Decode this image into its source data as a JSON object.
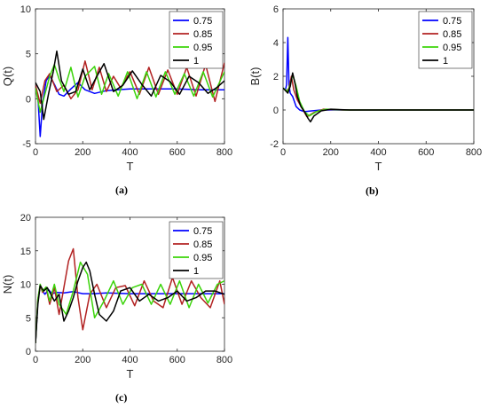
{
  "chart_data": [
    {
      "type": "line",
      "panel": "(a)",
      "xlabel": "T",
      "ylabel": "Q(t)",
      "xlim": [
        0,
        800
      ],
      "ylim": [
        -5,
        10
      ],
      "xticks": [
        0,
        200,
        400,
        600,
        800
      ],
      "yticks": [
        -5,
        0,
        5,
        10
      ],
      "legend": "top-right",
      "series": [
        {
          "name": "0.75",
          "color": "#0000ff",
          "x": [
            0,
            10,
            20,
            30,
            45,
            60,
            80,
            100,
            120,
            150,
            180,
            210,
            250,
            300,
            400,
            500,
            600,
            700,
            800
          ],
          "y": [
            1.5,
            0.2,
            -4.2,
            -0.5,
            2.0,
            2.6,
            1.6,
            0.5,
            0.3,
            1.1,
            1.8,
            1.0,
            0.6,
            0.9,
            1.1,
            1.1,
            1.1,
            1.0,
            1.0
          ]
        },
        {
          "name": "0.85",
          "color": "#b22222",
          "x": [
            0,
            20,
            40,
            60,
            90,
            120,
            150,
            180,
            210,
            240,
            270,
            300,
            330,
            360,
            400,
            440,
            480,
            520,
            560,
            600,
            640,
            680,
            720,
            760,
            800
          ],
          "y": [
            1.5,
            -0.5,
            2.0,
            2.8,
            0.8,
            1.5,
            0.0,
            1.0,
            4.2,
            1.0,
            3.5,
            0.8,
            2.5,
            1.2,
            3.0,
            0.5,
            3.5,
            0.5,
            3.2,
            0.5,
            3.5,
            0.3,
            3.8,
            -0.3,
            4.0
          ]
        },
        {
          "name": "0.95",
          "color": "#3bd40a",
          "x": [
            0,
            20,
            40,
            60,
            80,
            100,
            120,
            150,
            180,
            210,
            250,
            280,
            310,
            350,
            390,
            430,
            470,
            510,
            550,
            590,
            630,
            670,
            710,
            750,
            800
          ],
          "y": [
            1.2,
            -1.5,
            0.5,
            2.5,
            3.8,
            2.2,
            0.8,
            3.5,
            0.2,
            2.5,
            3.6,
            0.5,
            2.8,
            0.3,
            3.0,
            0.0,
            3.0,
            0.2,
            3.0,
            0.5,
            2.8,
            0.3,
            3.0,
            0.2,
            3.0
          ]
        },
        {
          "name": "1",
          "color": "#000000",
          "x": [
            0,
            20,
            35,
            55,
            75,
            90,
            110,
            140,
            170,
            200,
            230,
            260,
            290,
            330,
            370,
            410,
            450,
            490,
            530,
            570,
            610,
            650,
            690,
            730,
            770,
            800
          ],
          "y": [
            1.8,
            0.8,
            -2.3,
            0.5,
            3.0,
            5.3,
            2.0,
            0.5,
            0.8,
            3.3,
            1.0,
            2.5,
            3.9,
            0.8,
            1.5,
            3.1,
            1.6,
            0.3,
            2.6,
            1.9,
            0.5,
            2.5,
            1.8,
            0.6,
            1.3,
            2.0
          ]
        }
      ]
    },
    {
      "type": "line",
      "panel": "(b)",
      "xlabel": "T",
      "ylabel": "B(t)",
      "xlim": [
        0,
        800
      ],
      "ylim": [
        -2,
        6
      ],
      "xticks": [
        0,
        200,
        400,
        600,
        800
      ],
      "yticks": [
        -2,
        0,
        2,
        4,
        6
      ],
      "legend": "top-right",
      "series": [
        {
          "name": "0.75",
          "color": "#0000ff",
          "x": [
            0,
            10,
            15,
            20,
            25,
            30,
            40,
            55,
            70,
            90,
            120,
            160,
            250,
            400,
            800
          ],
          "y": [
            1.3,
            1.2,
            1.5,
            4.3,
            1.5,
            1.0,
            0.8,
            0.2,
            0.0,
            -0.1,
            -0.05,
            0.0,
            0.0,
            0.0,
            0.0
          ]
        },
        {
          "name": "0.85",
          "color": "#b22222",
          "x": [
            0,
            15,
            25,
            35,
            45,
            60,
            80,
            100,
            130,
            170,
            250,
            800
          ],
          "y": [
            1.3,
            1.1,
            1.3,
            2.0,
            1.2,
            0.6,
            0.1,
            -0.4,
            -0.15,
            0.05,
            0.0,
            0.0
          ]
        },
        {
          "name": "0.95",
          "color": "#3bd40a",
          "x": [
            0,
            20,
            30,
            40,
            55,
            70,
            90,
            110,
            140,
            180,
            260,
            800
          ],
          "y": [
            1.3,
            1.1,
            1.5,
            2.1,
            1.4,
            0.5,
            -0.1,
            -0.35,
            -0.1,
            0.05,
            0.0,
            0.0
          ]
        },
        {
          "name": "1",
          "color": "#000000",
          "x": [
            0,
            20,
            30,
            40,
            50,
            60,
            75,
            90,
            105,
            115,
            130,
            160,
            200,
            280,
            800
          ],
          "y": [
            1.3,
            1.0,
            1.4,
            2.2,
            1.6,
            0.8,
            0.2,
            -0.1,
            -0.5,
            -0.7,
            -0.35,
            -0.05,
            0.05,
            0.0,
            0.0
          ]
        }
      ]
    },
    {
      "type": "line",
      "panel": "(c)",
      "xlabel": "T",
      "ylabel": "N(t)",
      "xlim": [
        0,
        800
      ],
      "ylim": [
        0,
        20
      ],
      "xticks": [
        0,
        200,
        400,
        600,
        800
      ],
      "yticks": [
        0,
        5,
        10,
        15,
        20
      ],
      "legend": "top-right",
      "series": [
        {
          "name": "0.75",
          "color": "#0000ff",
          "x": [
            0,
            10,
            20,
            30,
            40,
            55,
            70,
            90,
            120,
            160,
            200,
            250,
            300,
            400,
            500,
            600,
            700,
            800
          ],
          "y": [
            1.2,
            7.5,
            9.8,
            9.0,
            8.5,
            9.2,
            8.6,
            8.8,
            8.7,
            8.9,
            8.6,
            8.6,
            8.7,
            8.6,
            8.6,
            8.6,
            8.6,
            8.6
          ]
        },
        {
          "name": "0.85",
          "color": "#b22222",
          "x": [
            0,
            10,
            20,
            30,
            45,
            60,
            80,
            100,
            120,
            140,
            160,
            180,
            200,
            230,
            260,
            300,
            340,
            380,
            420,
            460,
            500,
            540,
            580,
            620,
            660,
            700,
            740,
            780,
            800
          ],
          "y": [
            1.2,
            7.8,
            9.8,
            8.8,
            9.5,
            7.0,
            9.5,
            5.5,
            9.5,
            13.5,
            15.3,
            8.0,
            3.2,
            8.5,
            10.0,
            6.5,
            9.5,
            9.8,
            6.8,
            10.5,
            7.5,
            6.5,
            11.0,
            7.0,
            10.5,
            8.0,
            6.5,
            10.5,
            7.0
          ]
        },
        {
          "name": "0.95",
          "color": "#3bd40a",
          "x": [
            0,
            10,
            20,
            30,
            45,
            60,
            80,
            100,
            130,
            160,
            190,
            220,
            250,
            290,
            330,
            370,
            410,
            450,
            490,
            530,
            570,
            610,
            650,
            690,
            730,
            770,
            800
          ],
          "y": [
            1.2,
            7.8,
            10.0,
            9.0,
            9.6,
            7.5,
            10.0,
            7.0,
            5.5,
            9.0,
            13.3,
            11.5,
            5.0,
            7.5,
            10.5,
            7.0,
            9.5,
            10.0,
            7.0,
            10.0,
            7.0,
            10.5,
            6.5,
            10.0,
            7.2,
            10.0,
            10.5
          ]
        },
        {
          "name": "1",
          "color": "#000000",
          "x": [
            0,
            10,
            20,
            35,
            50,
            65,
            80,
            100,
            120,
            140,
            160,
            180,
            200,
            215,
            230,
            250,
            270,
            300,
            330,
            360,
            400,
            440,
            480,
            520,
            560,
            600,
            640,
            680,
            720,
            760,
            800
          ],
          "y": [
            1.2,
            7.0,
            9.8,
            9.0,
            9.5,
            8.5,
            7.5,
            8.5,
            4.5,
            6.0,
            8.0,
            10.5,
            12.5,
            13.3,
            12.0,
            8.5,
            5.5,
            4.5,
            6.0,
            9.0,
            9.5,
            7.5,
            8.5,
            7.5,
            8.0,
            9.0,
            7.5,
            8.0,
            9.0,
            9.0,
            8.5
          ]
        }
      ]
    }
  ],
  "captions": {
    "a": "(a)",
    "b": "(b)",
    "c": "(c)"
  }
}
